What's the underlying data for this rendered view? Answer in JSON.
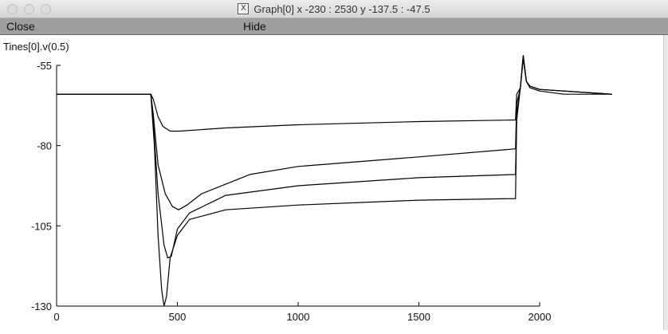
{
  "window": {
    "title": "Graph[0]  x -230 : 2530  y -137.5 : -47.5",
    "close_icon": "x-window-icon"
  },
  "menu": {
    "close_label": "Close",
    "hide_label": "Hide"
  },
  "chart_data": {
    "type": "line",
    "title": "",
    "ylabel": "Tines[0].v(0.5)",
    "xlabel": "",
    "xlim": [
      0,
      2000
    ],
    "ylim": [
      -130,
      -55
    ],
    "xticks": [
      0,
      500,
      1000,
      1500,
      2000
    ],
    "yticks": [
      -55,
      -80,
      -105,
      -130
    ],
    "series": [
      {
        "points": [
          [
            0,
            -64
          ],
          [
            390,
            -64
          ],
          [
            400,
            -65.5
          ],
          [
            420,
            -71
          ],
          [
            440,
            -74
          ],
          [
            470,
            -75.5
          ],
          [
            510,
            -75.5
          ],
          [
            700,
            -74.5
          ],
          [
            1000,
            -73.5
          ],
          [
            1500,
            -72.5
          ],
          [
            1900,
            -72
          ],
          [
            1905,
            -64
          ],
          [
            1920,
            -62
          ],
          [
            1932,
            -53
          ],
          [
            1945,
            -60
          ],
          [
            1960,
            -62
          ],
          [
            2000,
            -63
          ],
          [
            2100,
            -64
          ],
          [
            2300,
            -64
          ]
        ]
      },
      {
        "points": [
          [
            0,
            -64
          ],
          [
            390,
            -64
          ],
          [
            400,
            -70
          ],
          [
            420,
            -86
          ],
          [
            450,
            -95
          ],
          [
            480,
            -99
          ],
          [
            505,
            -100
          ],
          [
            540,
            -98.5
          ],
          [
            600,
            -95
          ],
          [
            800,
            -89
          ],
          [
            1000,
            -86.5
          ],
          [
            1500,
            -83.5
          ],
          [
            1900,
            -81
          ],
          [
            1905,
            -67
          ],
          [
            1920,
            -62
          ],
          [
            1932,
            -52
          ],
          [
            1945,
            -60
          ],
          [
            1960,
            -61.5
          ],
          [
            2000,
            -62.5
          ],
          [
            2100,
            -63
          ],
          [
            2300,
            -64
          ]
        ]
      },
      {
        "points": [
          [
            0,
            -64
          ],
          [
            390,
            -64
          ],
          [
            400,
            -72
          ],
          [
            420,
            -95
          ],
          [
            445,
            -111
          ],
          [
            460,
            -115
          ],
          [
            475,
            -114.5
          ],
          [
            500,
            -106
          ],
          [
            550,
            -101
          ],
          [
            700,
            -95.5
          ],
          [
            1000,
            -92.5
          ],
          [
            1500,
            -90
          ],
          [
            1900,
            -89
          ],
          [
            1905,
            -70
          ],
          [
            1920,
            -62
          ],
          [
            1932,
            -52
          ],
          [
            1945,
            -60
          ],
          [
            1960,
            -61.5
          ],
          [
            2000,
            -62.5
          ],
          [
            2100,
            -63
          ],
          [
            2300,
            -64
          ]
        ]
      },
      {
        "points": [
          [
            0,
            -64
          ],
          [
            390,
            -64
          ],
          [
            405,
            -80
          ],
          [
            420,
            -108
          ],
          [
            435,
            -125
          ],
          [
            445,
            -130
          ],
          [
            455,
            -127
          ],
          [
            470,
            -115
          ],
          [
            500,
            -108
          ],
          [
            550,
            -103
          ],
          [
            700,
            -100
          ],
          [
            1000,
            -98.5
          ],
          [
            1500,
            -97
          ],
          [
            1900,
            -96.5
          ],
          [
            1905,
            -72
          ],
          [
            1920,
            -62
          ],
          [
            1932,
            -52
          ],
          [
            1945,
            -60
          ],
          [
            1960,
            -61.5
          ],
          [
            2000,
            -62.5
          ],
          [
            2100,
            -63
          ],
          [
            2300,
            -64
          ]
        ]
      }
    ]
  }
}
